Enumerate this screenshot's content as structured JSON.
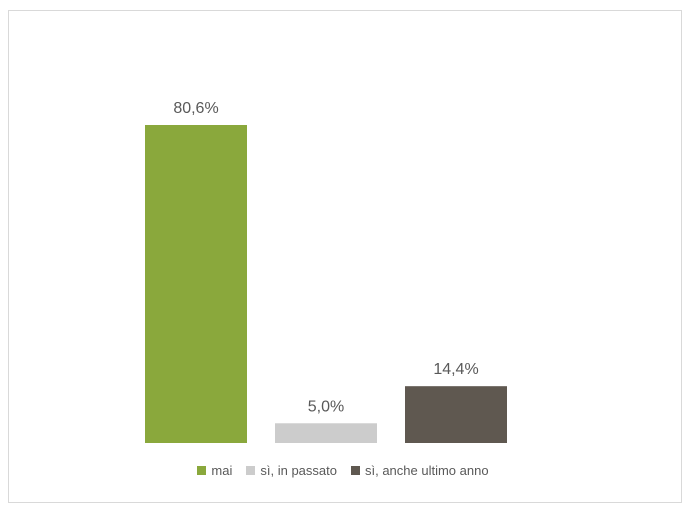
{
  "chart_data": {
    "type": "bar",
    "categories": [
      "mai",
      "sì, in passato",
      "sì, anche ultimo anno"
    ],
    "values": [
      80.6,
      5.0,
      14.4
    ],
    "value_labels": [
      "80,6%",
      "5,0%",
      "14,4%"
    ],
    "colors": [
      "#8aa83c",
      "#cccccc",
      "#5f5850"
    ],
    "ylim": [
      0,
      100
    ],
    "grid": false,
    "legend_position": "bottom",
    "legend": [
      {
        "label": "mai",
        "color": "#8aa83c"
      },
      {
        "label": "sì, in passato",
        "color": "#cccccc"
      },
      {
        "label": "sì, anche ultimo anno",
        "color": "#5f5850"
      }
    ]
  }
}
